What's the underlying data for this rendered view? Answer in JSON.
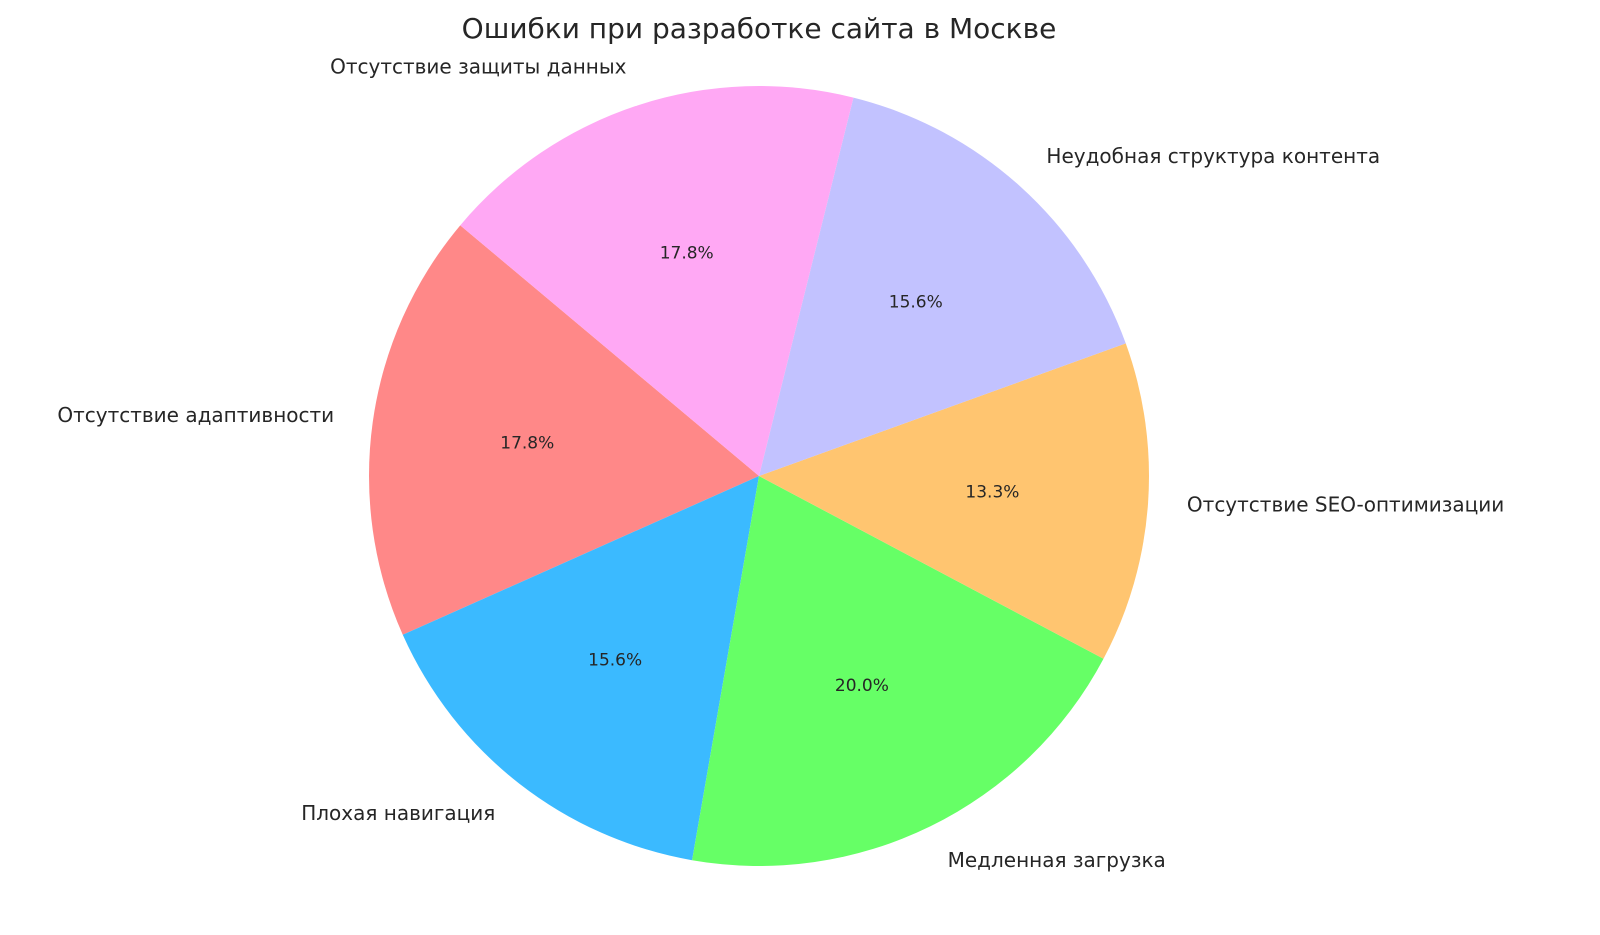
{
  "chart_data": {
    "type": "pie",
    "title": "Ошибки при разработке сайта в Москве",
    "start_angle_deg": 140,
    "direction": "counterclockwise",
    "slices": [
      {
        "label": "Отсутствие адаптивности",
        "value": 17.8,
        "pct_label": "17.8%",
        "color": "#ff8888"
      },
      {
        "label": "Плохая навигация",
        "value": 15.6,
        "pct_label": "15.6%",
        "color": "#3bbaff"
      },
      {
        "label": "Медленная загрузка",
        "value": 20.0,
        "pct_label": "20.0%",
        "color": "#66ff66"
      },
      {
        "label": "Отсутствие SEO-оптимизации",
        "value": 13.3,
        "pct_label": "13.3%",
        "color": "#ffc570"
      },
      {
        "label": "Неудобная структура контента",
        "value": 15.6,
        "pct_label": "15.6%",
        "color": "#c2c2ff"
      },
      {
        "label": "Отсутствие защиты данных",
        "value": 17.8,
        "pct_label": "17.8%",
        "color": "#ffa8f4"
      }
    ]
  }
}
